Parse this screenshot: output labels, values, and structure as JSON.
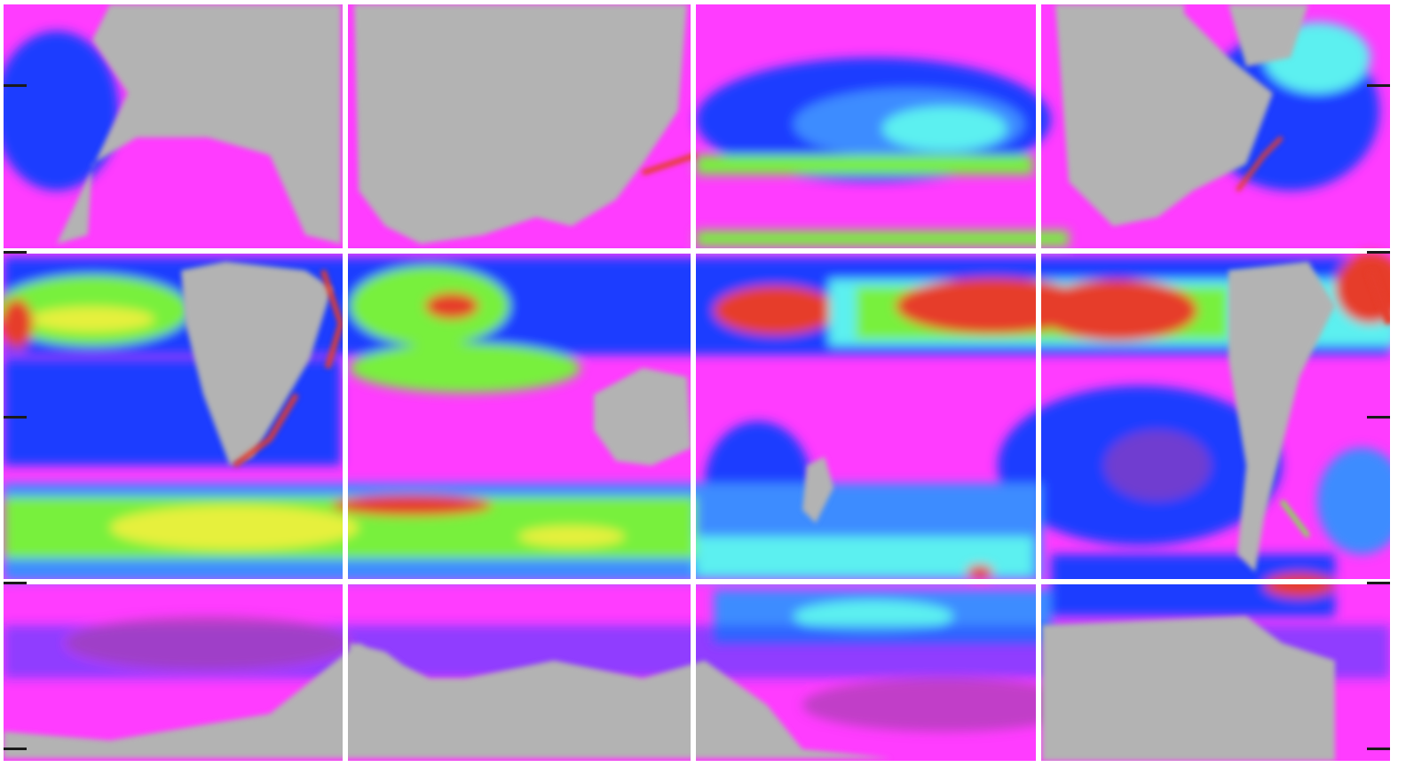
{
  "map": {
    "type": "global ocean field, cylindrical projection, tiled panels",
    "panel_grid": {
      "columns": 4,
      "rows": 3
    },
    "land_color": "#b3b3b3",
    "grid_color": "#ffffff",
    "tick_color": "#1a1a1a",
    "colorscale": [
      "#a63fb0",
      "#ff3cff",
      "#1f3cff",
      "#3c8cff",
      "#5cf0f0",
      "#78f03c",
      "#e6f03c",
      "#e63c2a"
    ]
  }
}
